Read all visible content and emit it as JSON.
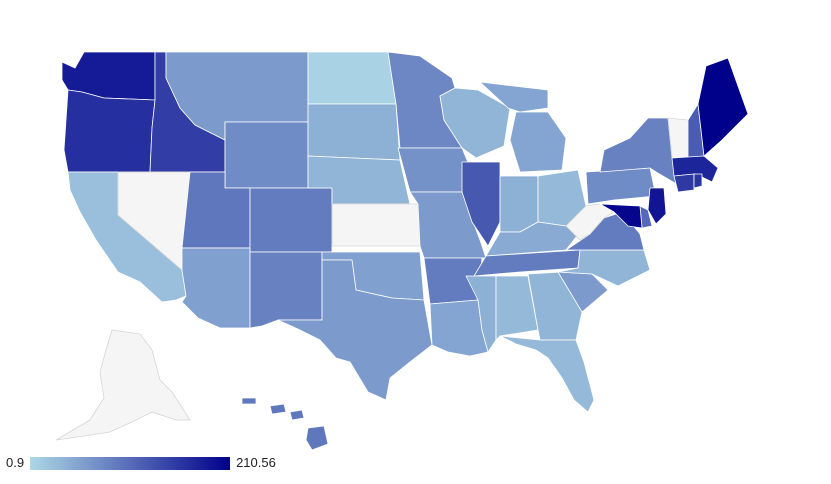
{
  "colors": {
    "scale_min": "#add8e6",
    "scale_max": "#00008b",
    "no_data": "#f5f5f5",
    "background": "#ffffff"
  },
  "legend": {
    "min_label": "0.9",
    "max_label": "210.56",
    "min_value": 0.9,
    "max_value": 210.56
  },
  "states": [
    {
      "code": "WA",
      "value": 185
    },
    {
      "code": "OR",
      "value": 165
    },
    {
      "code": "ID",
      "value": 150
    },
    {
      "code": "CA",
      "value": 25
    },
    {
      "code": "NV",
      "value": null
    },
    {
      "code": "MT",
      "value": 60
    },
    {
      "code": "WY",
      "value": 75
    },
    {
      "code": "UT",
      "value": 95
    },
    {
      "code": "CO",
      "value": 90
    },
    {
      "code": "AZ",
      "value": 55
    },
    {
      "code": "NM",
      "value": 85
    },
    {
      "code": "ND",
      "value": 6
    },
    {
      "code": "SD",
      "value": 40
    },
    {
      "code": "NE",
      "value": 35
    },
    {
      "code": "KS",
      "value": null
    },
    {
      "code": "OK",
      "value": 55
    },
    {
      "code": "TX",
      "value": 60
    },
    {
      "code": "MN",
      "value": 80
    },
    {
      "code": "IA",
      "value": 70
    },
    {
      "code": "MO",
      "value": 60
    },
    {
      "code": "AR",
      "value": 90
    },
    {
      "code": "LA",
      "value": 50
    },
    {
      "code": "WI",
      "value": 35
    },
    {
      "code": "IL",
      "value": 125
    },
    {
      "code": "MI",
      "value": 50
    },
    {
      "code": "IN",
      "value": 40
    },
    {
      "code": "OH",
      "value": 30
    },
    {
      "code": "KY",
      "value": 45
    },
    {
      "code": "TN",
      "value": 90
    },
    {
      "code": "MS",
      "value": 40
    },
    {
      "code": "AL",
      "value": 30
    },
    {
      "code": "GA",
      "value": 35
    },
    {
      "code": "FL",
      "value": 30
    },
    {
      "code": "SC",
      "value": 60
    },
    {
      "code": "NC",
      "value": 35
    },
    {
      "code": "VA",
      "value": 90
    },
    {
      "code": "WV",
      "value": null
    },
    {
      "code": "PA",
      "value": 75
    },
    {
      "code": "NY",
      "value": 85
    },
    {
      "code": "VT",
      "value": null
    },
    {
      "code": "NH",
      "value": 120
    },
    {
      "code": "ME",
      "value": 210
    },
    {
      "code": "MA",
      "value": 175
    },
    {
      "code": "CT",
      "value": 155
    },
    {
      "code": "RI",
      "value": 160
    },
    {
      "code": "NJ",
      "value": 190
    },
    {
      "code": "DE",
      "value": 110
    },
    {
      "code": "MD",
      "value": 205
    },
    {
      "code": "HI",
      "value": 95
    },
    {
      "code": "AK",
      "value": null
    }
  ]
}
